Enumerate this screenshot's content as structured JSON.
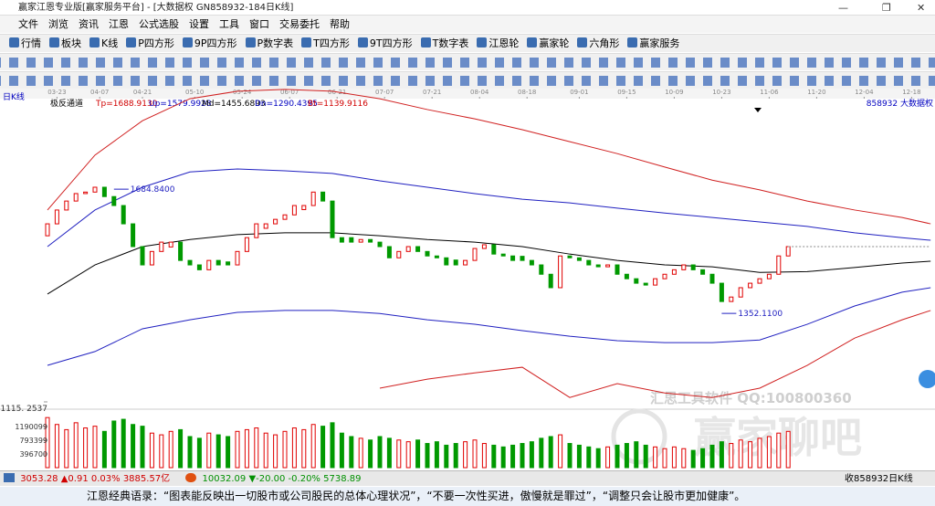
{
  "window": {
    "title": "赢家江恩专业版[赢家服务平台] - [大数据权  GN858932-184日K线]"
  },
  "menu": [
    "文件",
    "浏览",
    "资讯",
    "江恩",
    "公式选股",
    "设置",
    "工具",
    "窗口",
    "交易委托",
    "帮助"
  ],
  "toolbar": [
    "行情",
    "板块",
    "K线",
    "P四方形",
    "9P四方形",
    "P数字表",
    "T四方形",
    "9T四方形",
    "T数字表",
    "江恩轮",
    "赢家轮",
    "六角形",
    "赢家服务"
  ],
  "period_label": "日K线",
  "chart_data": {
    "type": "candlestick",
    "indicator": "极反通道",
    "indicator_values": [
      {
        "text": "Tp=1688.9130",
        "color": "#d00000"
      },
      {
        "text": "Up=1579.9928",
        "color": "#0000c0"
      },
      {
        "text": "Md=1455.6893",
        "color": "#000000"
      },
      {
        "text": "Dn=1290.4395",
        "color": "#0000c0"
      },
      {
        "text": "Bt=1139.9116",
        "color": "#d00000"
      }
    ],
    "symbol": "858932  大数据权",
    "xlim": [
      0,
      186
    ],
    "xticks": [
      {
        "value": 2,
        "label": "03-23"
      },
      {
        "value": 11,
        "label": "04-07"
      },
      {
        "value": 20,
        "label": "04-21"
      },
      {
        "value": 31,
        "label": "05-10"
      },
      {
        "value": 41,
        "label": "05-24"
      },
      {
        "value": 51,
        "label": "06-07"
      },
      {
        "value": 61,
        "label": "06-21"
      },
      {
        "value": 71,
        "label": "07-07"
      },
      {
        "value": 81,
        "label": "07-21"
      },
      {
        "value": 91,
        "label": "08-04"
      },
      {
        "value": 101,
        "label": "08-18"
      },
      {
        "value": 112,
        "label": "09-01"
      },
      {
        "value": 122,
        "label": "09-15"
      },
      {
        "value": 132,
        "label": "10-09"
      },
      {
        "value": 142,
        "label": "10-23"
      },
      {
        "value": 152,
        "label": "11-06"
      },
      {
        "value": 162,
        "label": "11-20"
      },
      {
        "value": 172,
        "label": "12-04"
      },
      {
        "value": 182,
        "label": "12-18"
      }
    ],
    "ylim": [
      1115.2537,
      1959
    ],
    "yticks": [
      {
        "value": 1115.2537,
        "label": "1115. 2537"
      }
    ],
    "up_color": "#e00000",
    "down_color": "#009900",
    "candles": {
      "x": [
        0,
        2,
        4,
        6,
        8,
        10,
        12,
        14,
        16,
        18,
        20,
        22,
        24,
        26,
        28,
        30,
        32,
        34,
        36,
        38,
        40,
        42,
        44,
        46,
        48,
        50,
        52,
        54,
        56,
        58,
        60,
        62,
        64,
        66,
        68,
        70,
        72,
        74,
        76,
        78,
        80,
        82,
        84,
        86,
        88,
        90,
        92,
        94,
        96,
        98,
        100,
        102,
        104,
        106,
        108,
        110,
        112,
        114,
        116,
        118,
        120,
        122,
        124,
        126,
        128,
        130,
        132,
        134,
        136,
        138,
        140,
        142,
        144,
        146,
        148,
        150,
        152,
        154,
        156
      ],
      "open": [
        1560,
        1592,
        1629,
        1653,
        1673,
        1677,
        1690,
        1665,
        1641,
        1592,
        1531,
        1482,
        1518,
        1530,
        1543,
        1494,
        1482,
        1469,
        1494,
        1490,
        1482,
        1518,
        1555,
        1580,
        1592,
        1604,
        1616,
        1630,
        1641,
        1677,
        1653,
        1555,
        1555,
        1543,
        1550,
        1543,
        1531,
        1501,
        1518,
        1531,
        1518,
        1506,
        1501,
        1495,
        1482,
        1494,
        1526,
        1536,
        1511,
        1506,
        1505,
        1494,
        1482,
        1457,
        1421,
        1506,
        1501,
        1494,
        1482,
        1477,
        1482,
        1457,
        1445,
        1433,
        1428,
        1445,
        1457,
        1469,
        1482,
        1469,
        1457,
        1433,
        1384,
        1396,
        1421,
        1433,
        1445,
        1457,
        1506
      ],
      "close": [
        1592,
        1629,
        1653,
        1673,
        1677,
        1690,
        1665,
        1641,
        1592,
        1531,
        1482,
        1518,
        1543,
        1543,
        1494,
        1482,
        1469,
        1494,
        1482,
        1482,
        1518,
        1555,
        1592,
        1592,
        1604,
        1616,
        1641,
        1641,
        1677,
        1653,
        1555,
        1543,
        1543,
        1550,
        1543,
        1531,
        1501,
        1518,
        1531,
        1518,
        1506,
        1501,
        1482,
        1482,
        1494,
        1526,
        1536,
        1511,
        1506,
        1494,
        1494,
        1482,
        1457,
        1421,
        1506,
        1501,
        1494,
        1482,
        1477,
        1482,
        1457,
        1445,
        1433,
        1428,
        1445,
        1457,
        1469,
        1482,
        1469,
        1457,
        1433,
        1384,
        1396,
        1421,
        1433,
        1445,
        1457,
        1506,
        1531
      ]
    },
    "line_x": [
      0,
      10,
      20,
      30,
      40,
      50,
      60,
      70,
      80,
      90,
      100,
      110,
      120,
      130,
      140,
      150,
      160,
      170,
      180,
      186
    ],
    "series": [
      {
        "name": "Tp",
        "color": "#d02020",
        "values": [
          1629,
          1776,
          1868,
          1927,
          1947,
          1952,
          1947,
          1927,
          1898,
          1873,
          1844,
          1812,
          1780,
          1744,
          1709,
          1683,
          1653,
          1629,
          1609,
          1592
        ]
      },
      {
        "name": "Up",
        "color": "#2020c0",
        "values": [
          1531,
          1629,
          1690,
          1731,
          1739,
          1734,
          1727,
          1707,
          1690,
          1673,
          1658,
          1648,
          1634,
          1621,
          1609,
          1597,
          1585,
          1568,
          1555,
          1548
        ]
      },
      {
        "name": "Md",
        "color": "#000000",
        "values": [
          1404,
          1482,
          1531,
          1550,
          1563,
          1568,
          1568,
          1560,
          1550,
          1543,
          1531,
          1511,
          1494,
          1482,
          1477,
          1462,
          1464,
          1475,
          1487,
          1492
        ]
      },
      {
        "name": "Dn",
        "color": "#2020c0",
        "values": [
          1213,
          1250,
          1311,
          1335,
          1355,
          1360,
          1360,
          1352,
          1335,
          1323,
          1306,
          1291,
          1279,
          1274,
          1274,
          1281,
          1323,
          1372,
          1409,
          1421
        ]
      },
      {
        "name": "Bt",
        "color": "#d02020",
        "values": [
          null,
          null,
          null,
          null,
          null,
          null,
          null,
          1152,
          1176,
          1193,
          1208,
          1127,
          1164,
          1139,
          1127,
          1152,
          1213,
          1286,
          1335,
          1360
        ]
      }
    ],
    "annotations": [
      {
        "label": "1684.8400",
        "x": 14,
        "value": 1684.84
      },
      {
        "label": "1352.1100",
        "x": 142,
        "value": 1352.11
      }
    ],
    "volume": {
      "vlim": [
        0,
        1587000
      ],
      "yticks": [
        396700,
        793399,
        1190099
      ],
      "values": [
        1450000,
        1250000,
        1100000,
        1300000,
        1150000,
        1200000,
        1050000,
        1350000,
        1400000,
        1250000,
        1200000,
        1000000,
        950000,
        1050000,
        1100000,
        900000,
        850000,
        1000000,
        950000,
        900000,
        1050000,
        1100000,
        1150000,
        1000000,
        950000,
        1050000,
        1150000,
        1100000,
        1250000,
        1200000,
        1300000,
        1000000,
        900000,
        850000,
        800000,
        900000,
        850000,
        800000,
        750000,
        800000,
        700000,
        750000,
        650000,
        700000,
        750000,
        800000,
        700000,
        650000,
        600000,
        650000,
        700000,
        750000,
        850000,
        900000,
        950000,
        700000,
        650000,
        600000,
        550000,
        600000,
        650000,
        700000,
        750000,
        650000,
        600000,
        550000,
        600000,
        550000,
        500000,
        550000,
        650000,
        750000,
        700000,
        800000,
        750000,
        850000,
        900000,
        1000000,
        1050000
      ]
    }
  },
  "watermark": {
    "line1": "汇思工具软件  QQ:100800360",
    "line2": "赢家聊吧"
  },
  "status": {
    "sh_price": "3053.28",
    "sh_change": "▲0.91 0.03% 3885.57亿",
    "sz_price": "10032.09",
    "sz_change": "▼-20.00 -0.20% 5738.89",
    "right": "收858932日K线"
  },
  "footer": "江恩经典语录：“图表能反映出一切股市或公司股民的总体心理状况”，“不要一次性买进，傲慢就是罪过”，“调整只会让股市更加健康”。"
}
